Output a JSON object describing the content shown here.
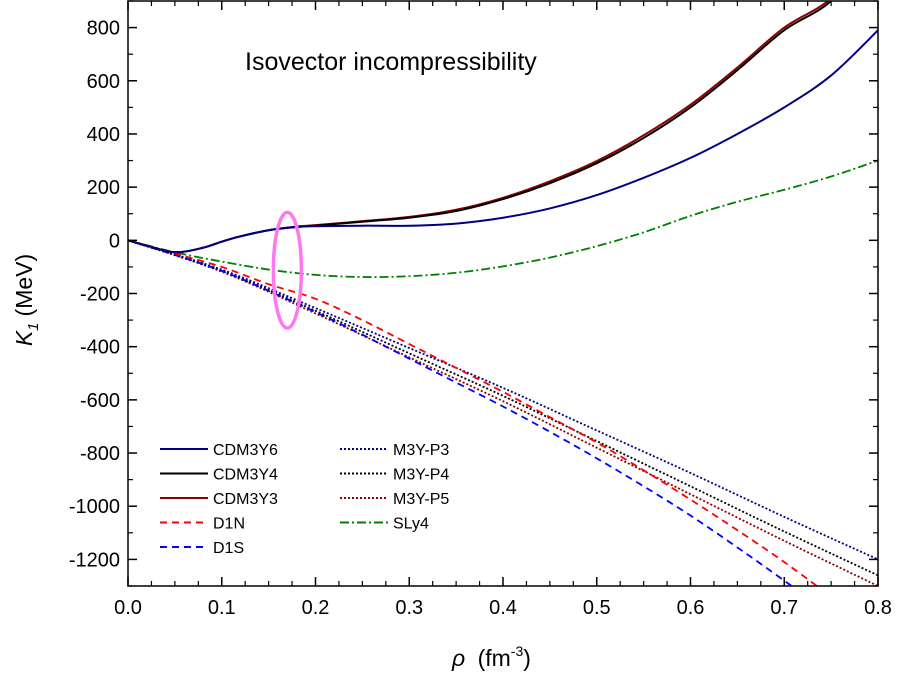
{
  "chart_data": {
    "type": "line",
    "annotation": "Isovector incompressibility",
    "xlabel": {
      "symbol": "ρ",
      "unit_prefix": "(fm",
      "exponent": "-3",
      "unit_suffix": ")"
    },
    "ylabel": {
      "symbol": "K",
      "subscript": "1",
      "unit": "(MeV)"
    },
    "xlim": [
      0.0,
      0.8
    ],
    "ylim": [
      -1300,
      900
    ],
    "xticks": [
      0.0,
      0.1,
      0.2,
      0.3,
      0.4,
      0.5,
      0.6,
      0.7,
      0.8
    ],
    "xtick_labels": [
      "0.0",
      "0.1",
      "0.2",
      "0.3",
      "0.4",
      "0.5",
      "0.6",
      "0.7",
      "0.8"
    ],
    "yticks": [
      -1200,
      -1000,
      -800,
      -600,
      -400,
      -200,
      0,
      200,
      400,
      600,
      800
    ],
    "ytick_labels": [
      "-1200",
      "-1000",
      "-800",
      "-600",
      "-400",
      "-200",
      "0",
      "200",
      "400",
      "600",
      "800"
    ],
    "grid": false,
    "legend_position": "bottom-left",
    "highlight": {
      "shape": "ellipse",
      "x": 0.17,
      "y_range": [
        -330,
        105
      ],
      "color": "#ff77ee"
    },
    "series": [
      {
        "name": "CDM3Y6",
        "color": "#000080",
        "dash": "solid",
        "x": [
          0,
          0.02,
          0.05,
          0.08,
          0.1,
          0.12,
          0.15,
          0.18,
          0.2,
          0.25,
          0.3,
          0.35,
          0.4,
          0.45,
          0.5,
          0.55,
          0.6,
          0.65,
          0.7,
          0.75,
          0.8
        ],
        "y": [
          0,
          -20,
          -45,
          -28,
          -5,
          15,
          38,
          50,
          53,
          55,
          55,
          63,
          85,
          120,
          170,
          235,
          310,
          400,
          500,
          620,
          790
        ]
      },
      {
        "name": "CDM3Y4",
        "color": "#000000",
        "dash": "solid",
        "x": [
          0,
          0.02,
          0.05,
          0.08,
          0.1,
          0.12,
          0.15,
          0.18,
          0.2,
          0.25,
          0.3,
          0.35,
          0.4,
          0.45,
          0.5,
          0.55,
          0.6,
          0.65,
          0.7,
          0.75,
          0.8
        ],
        "y": [
          0,
          -20,
          -45,
          -28,
          -5,
          15,
          38,
          50,
          55,
          70,
          85,
          110,
          155,
          215,
          290,
          385,
          500,
          640,
          790,
          900,
          1100
        ]
      },
      {
        "name": "CDM3Y3",
        "color": "#8b0000",
        "dash": "solid",
        "x": [
          0,
          0.02,
          0.05,
          0.08,
          0.1,
          0.12,
          0.15,
          0.18,
          0.2,
          0.25,
          0.3,
          0.35,
          0.4,
          0.45,
          0.5,
          0.55,
          0.6,
          0.65,
          0.7,
          0.75,
          0.8
        ],
        "y": [
          0,
          -20,
          -45,
          -28,
          -5,
          15,
          38,
          52,
          57,
          72,
          88,
          115,
          160,
          222,
          298,
          395,
          510,
          650,
          800,
          910,
          1110
        ]
      },
      {
        "name": "D1N",
        "color": "#ff0000",
        "dash": "7 5",
        "x": [
          0,
          0.05,
          0.1,
          0.15,
          0.2,
          0.25,
          0.3,
          0.35,
          0.4,
          0.45,
          0.5,
          0.55,
          0.6,
          0.65,
          0.7,
          0.75,
          0.8
        ],
        "y": [
          0,
          -50,
          -100,
          -165,
          -220,
          -300,
          -390,
          -480,
          -570,
          -665,
          -760,
          -865,
          -975,
          -1090,
          -1210,
          -1340,
          -1470
        ]
      },
      {
        "name": "D1S",
        "color": "#0000ff",
        "dash": "7 5",
        "x": [
          0,
          0.05,
          0.1,
          0.15,
          0.2,
          0.25,
          0.3,
          0.35,
          0.4,
          0.45,
          0.5,
          0.55,
          0.6,
          0.65,
          0.7,
          0.75
        ],
        "y": [
          0,
          -55,
          -115,
          -190,
          -270,
          -355,
          -445,
          -535,
          -625,
          -720,
          -820,
          -925,
          -1035,
          -1155,
          -1280,
          -1410
        ]
      },
      {
        "name": "M3Y-P3",
        "color": "#00008b",
        "dash": "2 2",
        "x": [
          0,
          0.1,
          0.2,
          0.3,
          0.4,
          0.5,
          0.6,
          0.7,
          0.8
        ],
        "y": [
          0,
          -110,
          -255,
          -405,
          -555,
          -715,
          -875,
          -1040,
          -1200
        ]
      },
      {
        "name": "M3Y-P4",
        "color": "#000000",
        "dash": "2 2",
        "x": [
          0,
          0.1,
          0.2,
          0.3,
          0.4,
          0.5,
          0.6,
          0.7,
          0.8
        ],
        "y": [
          0,
          -115,
          -265,
          -425,
          -585,
          -755,
          -925,
          -1095,
          -1260
        ]
      },
      {
        "name": "M3Y-P5",
        "color": "#8b0000",
        "dash": "2 2",
        "x": [
          0,
          0.1,
          0.2,
          0.3,
          0.4,
          0.5,
          0.6,
          0.7,
          0.8
        ],
        "y": [
          0,
          -118,
          -275,
          -440,
          -605,
          -780,
          -955,
          -1130,
          -1300
        ]
      },
      {
        "name": "SLy4",
        "color": "#008000",
        "dash": "9 3 2 3",
        "x": [
          0,
          0.05,
          0.1,
          0.15,
          0.2,
          0.25,
          0.3,
          0.35,
          0.4,
          0.45,
          0.5,
          0.55,
          0.6,
          0.65,
          0.7,
          0.75,
          0.8
        ],
        "y": [
          0,
          -45,
          -80,
          -110,
          -130,
          -138,
          -135,
          -122,
          -98,
          -65,
          -22,
          30,
          92,
          145,
          190,
          240,
          300
        ]
      }
    ]
  }
}
